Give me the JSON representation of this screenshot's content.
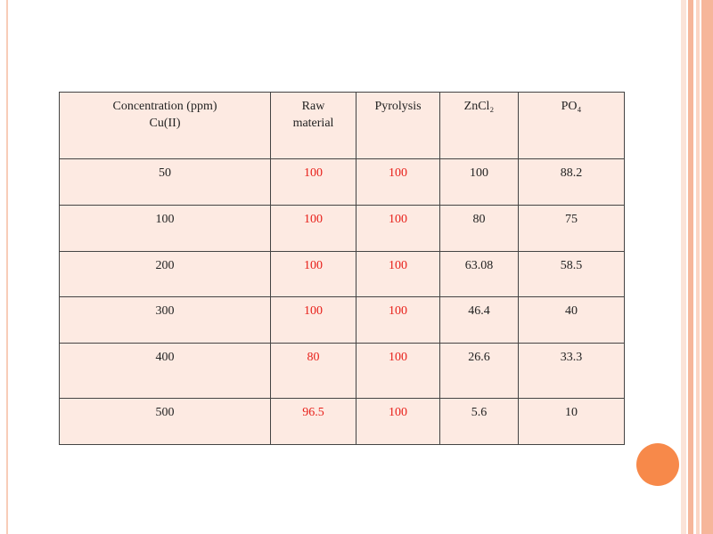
{
  "table": {
    "header": [
      [
        "Concentration (ppm)",
        "Cu(II)"
      ],
      [
        "Raw",
        "material"
      ],
      [
        "Pyrolysis"
      ],
      [
        "ZnCl₂"
      ],
      [
        "PO₄"
      ]
    ],
    "rows": [
      [
        "50",
        "100",
        "100",
        "100",
        "88.2"
      ],
      [
        "100",
        "100",
        "100",
        "80",
        "75"
      ],
      [
        "200",
        "100",
        "100",
        "63.08",
        "58.5"
      ],
      [
        "300",
        "100",
        "100",
        "46.4",
        "40"
      ],
      [
        "400",
        "80",
        "100",
        "26.6",
        "33.3"
      ],
      [
        "500",
        "96.5",
        "100",
        "5.6",
        "10"
      ]
    ]
  }
}
